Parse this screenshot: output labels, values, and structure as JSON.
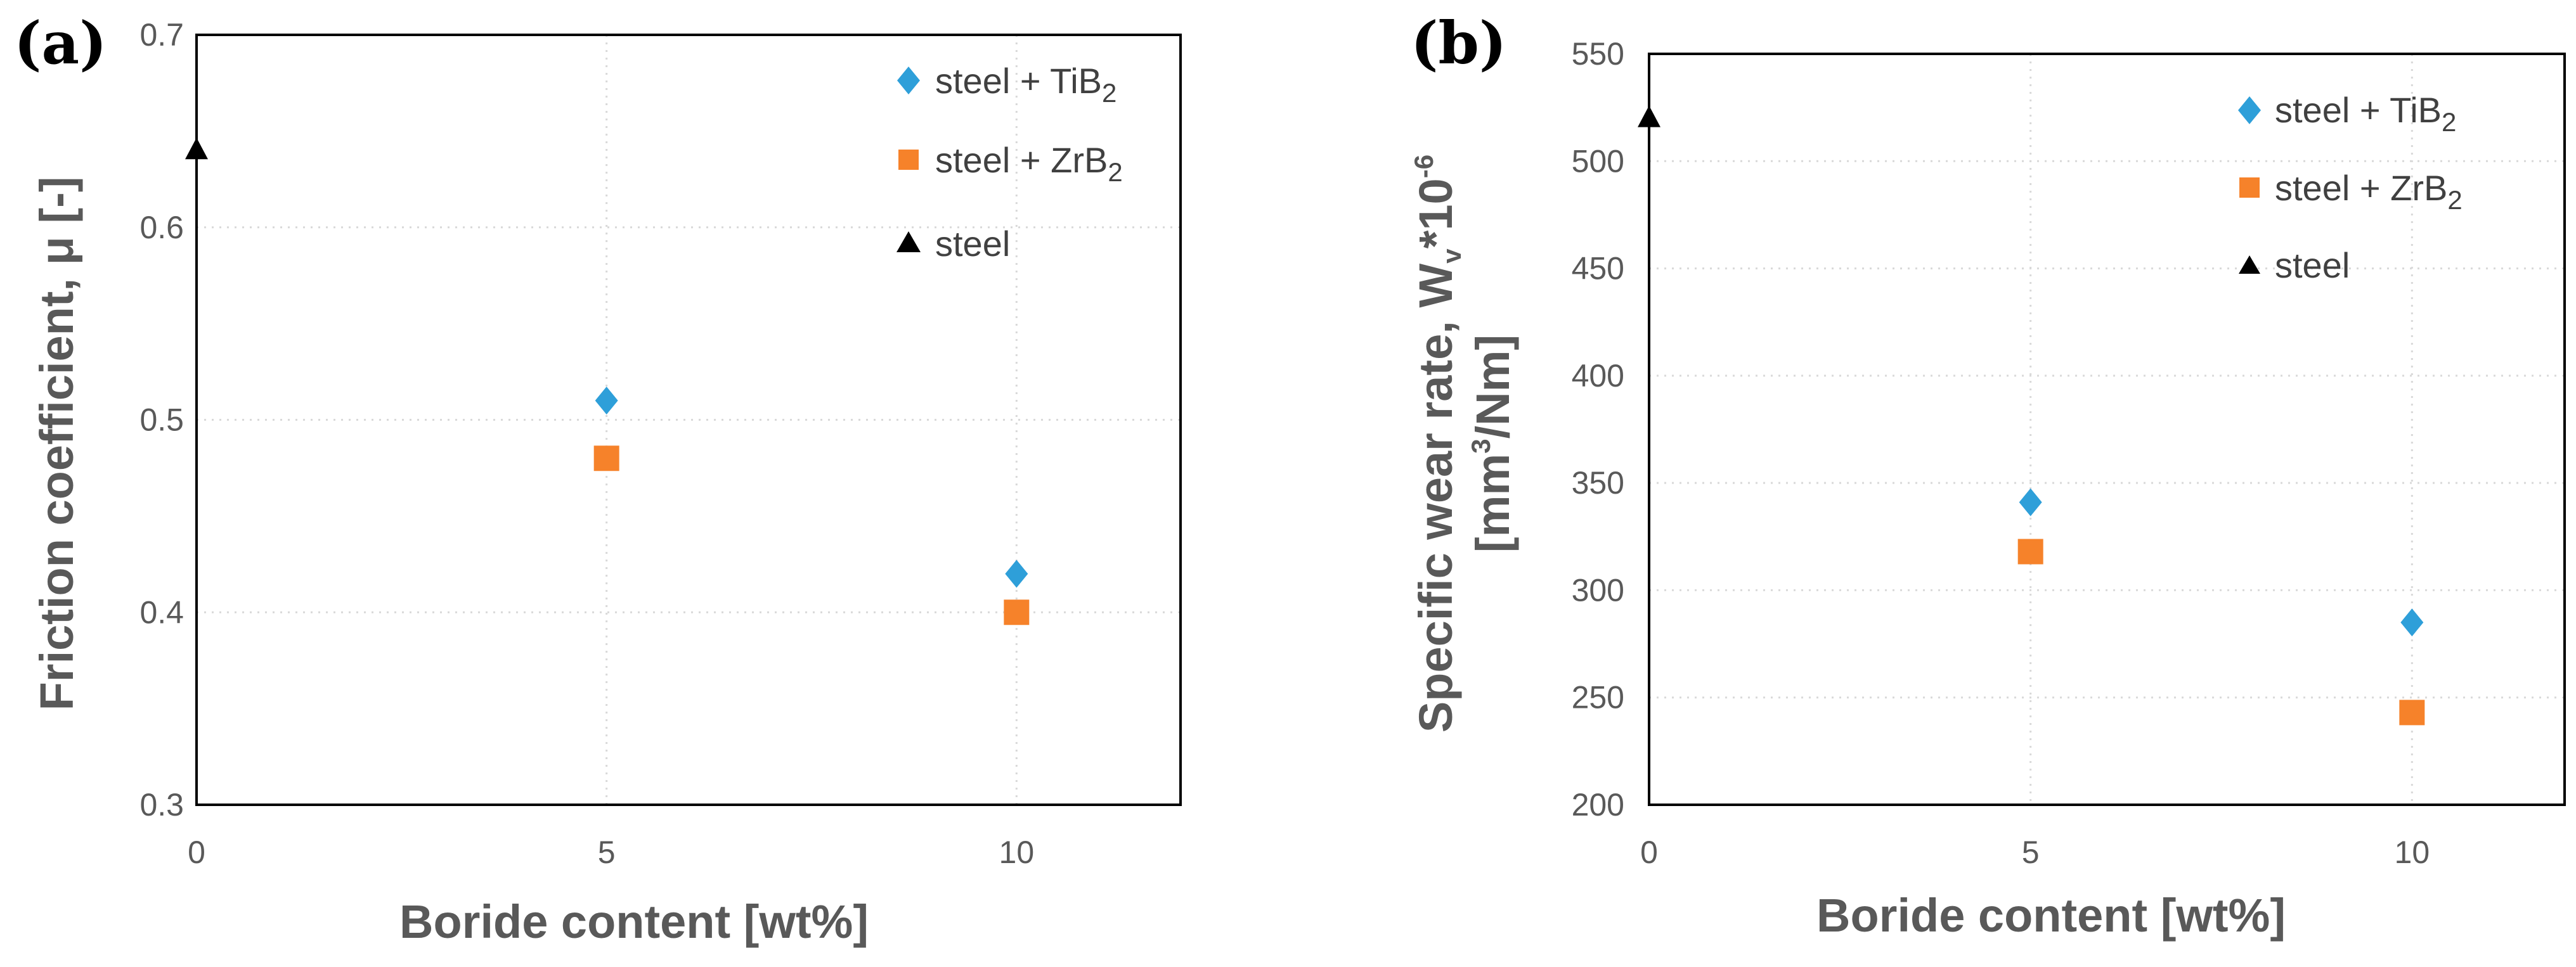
{
  "chart_data": [
    {
      "type": "scatter",
      "panel_label": "(a)",
      "title": "",
      "xlabel": "Boride content [wt%]",
      "ylabel": "Friction coefficient, μ [-]",
      "xlim": [
        0,
        12
      ],
      "ylim": [
        0.3,
        0.7
      ],
      "xticks": [
        0,
        5,
        10
      ],
      "xtick_labels": [
        "0",
        "5",
        "10"
      ],
      "yticks": [
        0.3,
        0.4,
        0.5,
        0.6,
        0.7
      ],
      "ytick_labels": [
        "0.3",
        "0.4",
        "0.5",
        "0.6",
        "0.7"
      ],
      "grid": true,
      "legend_position": "top-right",
      "series": [
        {
          "name": "steel + TiB2",
          "label_main": "steel + TiB",
          "label_sub": "2",
          "marker": "diamond",
          "color": "#2E9FD9",
          "points": [
            {
              "x": 5,
              "y": 0.51
            },
            {
              "x": 10,
              "y": 0.42
            }
          ]
        },
        {
          "name": "steel + ZrB2",
          "label_main": "steel + ZrB",
          "label_sub": "2",
          "marker": "square",
          "color": "#F6822A",
          "points": [
            {
              "x": 5,
              "y": 0.48
            },
            {
              "x": 10,
              "y": 0.4
            }
          ]
        },
        {
          "name": "steel",
          "label_main": "steel",
          "label_sub": "",
          "marker": "triangle",
          "color": "#000000",
          "points": [
            {
              "x": 0,
              "y": 0.64
            }
          ]
        }
      ]
    },
    {
      "type": "scatter",
      "panel_label": "(b)",
      "title": "",
      "xlabel": "Boride content [wt%]",
      "ylabel": "Specific wear rate, Wv*10-6 [mm3/Nm]",
      "ylabel_parts": {
        "l1_main": "Specific wear rate, W",
        "l1_sub": "v",
        "l1_mid": "*10",
        "l1_sup": "-6",
        "l2_pre": "[mm",
        "l2_sup": "3",
        "l2_post": "/Nm]"
      },
      "xlim": [
        0,
        12
      ],
      "ylim": [
        200,
        550
      ],
      "xticks": [
        0,
        5,
        10
      ],
      "xtick_labels": [
        "0",
        "5",
        "10"
      ],
      "yticks": [
        200,
        250,
        300,
        350,
        400,
        450,
        500,
        550
      ],
      "ytick_labels": [
        "200",
        "250",
        "300",
        "350",
        "400",
        "450",
        "500",
        "550"
      ],
      "grid": true,
      "legend_position": "top-right",
      "series": [
        {
          "name": "steel + TiB2",
          "label_main": "steel + TiB",
          "label_sub": "2",
          "marker": "diamond",
          "color": "#2E9FD9",
          "points": [
            {
              "x": 5,
              "y": 341
            },
            {
              "x": 10,
              "y": 285
            }
          ]
        },
        {
          "name": "steel + ZrB2",
          "label_main": "steel + ZrB",
          "label_sub": "2",
          "marker": "square",
          "color": "#F6822A",
          "points": [
            {
              "x": 5,
              "y": 318
            },
            {
              "x": 10,
              "y": 243
            }
          ]
        },
        {
          "name": "steel",
          "label_main": "steel",
          "label_sub": "",
          "marker": "triangle",
          "color": "#000000",
          "points": [
            {
              "x": 0,
              "y": 520
            }
          ]
        }
      ]
    }
  ]
}
